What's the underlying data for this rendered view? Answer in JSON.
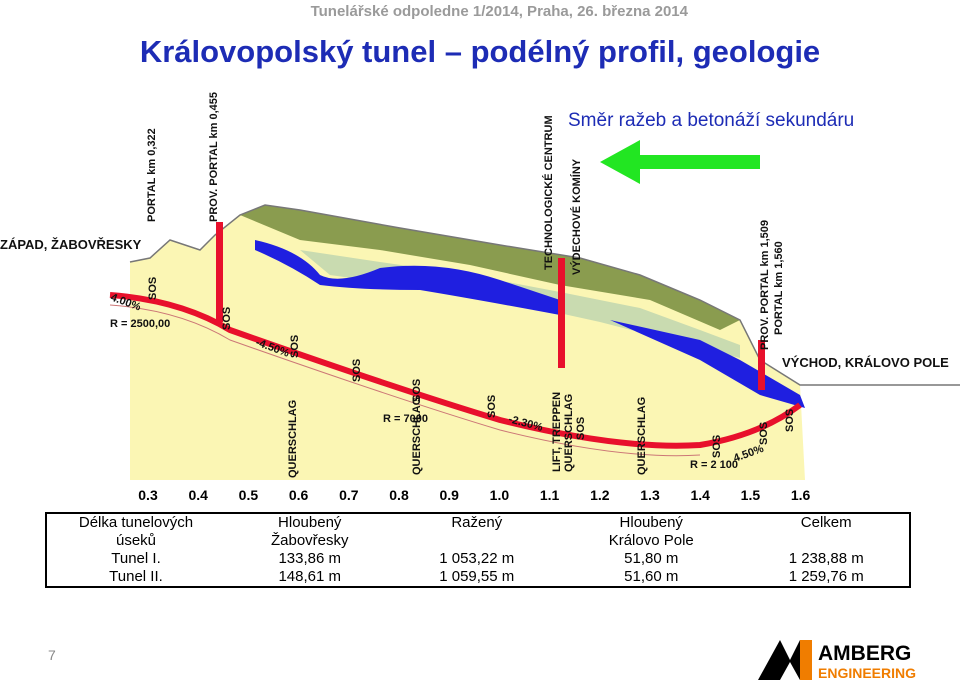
{
  "header": {
    "event": "Tunelářské odpoledne 1/2014, Praha, 26. března 2014",
    "title": "Královopolský tunel – podélný profil, geologie"
  },
  "profile": {
    "direction": "Směr ražeb a betonáží sekundáru",
    "west": "ZÁPAD, ŽABOVŘESKY",
    "east": "VÝCHOD, KRÁLOVO POLE",
    "portal_west": "PORTAL  km 0,322",
    "prov_portal_west": "PROV. PORTAL  km 0,455",
    "tech_centre": "TECHNOLOGICKÉ CENTRUM",
    "chimneys": "VÝDECHOVÉ KOMÍNY",
    "prov_portal_east": "PROV. PORTAL km 1,509",
    "portal_east": "PORTAL km  1,560",
    "grade_1": "4.00%",
    "radius_1": "R = 2500,00",
    "grade_2": "-4.50%",
    "radius_2": "R = 7000",
    "grade_3": "-2.30%",
    "radius_3": "R = 2 100",
    "grade_4": "4.50%",
    "lift": [
      "LIFT, TREPPEN",
      "QUERSCHLAG",
      "SOS"
    ],
    "sos": [
      "SOS",
      "SOS",
      "SOS",
      "SOS",
      "SOS",
      "SOS",
      "SOS",
      "SOS",
      "SOS"
    ],
    "querschlag": [
      "QUERSCHLAG",
      "QUERSCHLAG",
      "QUERSCHLAG"
    ],
    "km_ticks": [
      "0.3",
      "0.4",
      "0.5",
      "0.6",
      "0.7",
      "0.8",
      "0.9",
      "1.0",
      "1.1",
      "1.2",
      "1.3",
      "1.4",
      "1.5",
      "1.6"
    ]
  },
  "table": {
    "header": [
      [
        "Délka tunelových",
        "úseků"
      ],
      [
        "Hloubený",
        "Žabovřesky"
      ],
      [
        "Ražený"
      ],
      [
        "Hloubený",
        "Královo Pole"
      ],
      [
        "Celkem"
      ]
    ],
    "rows": [
      [
        "Tunel  I.",
        "133,86 m",
        "1 053,22 m",
        "51,80 m",
        "1 238,88 m"
      ],
      [
        "Tunel  II.",
        "148,61 m",
        "1 059,55 m",
        "51,60 m",
        "1 259,76 m"
      ]
    ]
  },
  "footer": {
    "page": "7",
    "logo_top": "AMBERG",
    "logo_bottom": "ENGINEERING"
  }
}
